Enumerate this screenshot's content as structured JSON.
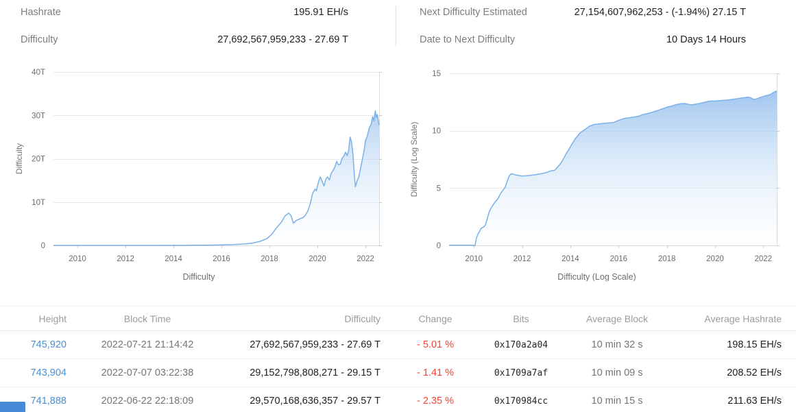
{
  "stats": {
    "left": [
      {
        "label": "Hashrate",
        "value": "195.91 EH/s"
      },
      {
        "label": "Difficulty",
        "value": "27,692,567,959,233 - 27.69 T"
      }
    ],
    "right": [
      {
        "label": "Next Difficulty Estimated",
        "value": "27,154,607,962,253 - (-1.94%) 27.15 T"
      },
      {
        "label": "Date to Next Difficulty",
        "value": "10 Days 14 Hours"
      }
    ]
  },
  "chart_data": [
    {
      "type": "area",
      "title": "Difficulty",
      "legend": "Difficulty",
      "ylabel": "Difficulty",
      "xlabel": "",
      "unit": "T (difficulty, trillions)",
      "grid": true,
      "legend_position": "bottom-center",
      "xlim": [
        2009.0,
        2022.57
      ],
      "ylim": [
        0,
        40
      ],
      "x_ticks": [
        2010,
        2012,
        2014,
        2016,
        2018,
        2020,
        2022
      ],
      "y_ticks": [
        {
          "v": 0,
          "label": "0"
        },
        {
          "v": 10,
          "label": "10T"
        },
        {
          "v": 20,
          "label": "20T"
        },
        {
          "v": 30,
          "label": "30T"
        },
        {
          "v": 40,
          "label": "40T"
        }
      ],
      "points": [
        [
          2009.0,
          0.001
        ],
        [
          2010,
          0.001
        ],
        [
          2011,
          0.001
        ],
        [
          2012,
          0.002
        ],
        [
          2013,
          0.004
        ],
        [
          2014,
          0.01
        ],
        [
          2014.5,
          0.02
        ],
        [
          2015,
          0.04
        ],
        [
          2015.5,
          0.06
        ],
        [
          2016,
          0.12
        ],
        [
          2016.5,
          0.19
        ],
        [
          2017,
          0.34
        ],
        [
          2017.3,
          0.55
        ],
        [
          2017.6,
          0.92
        ],
        [
          2017.9,
          1.6
        ],
        [
          2018.1,
          2.6
        ],
        [
          2018.3,
          4.1
        ],
        [
          2018.5,
          5.4
        ],
        [
          2018.65,
          6.8
        ],
        [
          2018.8,
          7.45
        ],
        [
          2018.9,
          6.9
        ],
        [
          2019.0,
          5.1
        ],
        [
          2019.1,
          5.7
        ],
        [
          2019.25,
          6.1
        ],
        [
          2019.4,
          6.4
        ],
        [
          2019.5,
          7.0
        ],
        [
          2019.6,
          7.9
        ],
        [
          2019.7,
          9.6
        ],
        [
          2019.8,
          12.0
        ],
        [
          2019.9,
          13.0
        ],
        [
          2019.95,
          12.6
        ],
        [
          2020.05,
          14.8
        ],
        [
          2020.12,
          15.8
        ],
        [
          2020.2,
          14.7
        ],
        [
          2020.27,
          13.7
        ],
        [
          2020.35,
          15.3
        ],
        [
          2020.42,
          15.8
        ],
        [
          2020.5,
          15.1
        ],
        [
          2020.57,
          16.6
        ],
        [
          2020.65,
          17.3
        ],
        [
          2020.72,
          18.0
        ],
        [
          2020.8,
          19.4
        ],
        [
          2020.87,
          18.6
        ],
        [
          2020.95,
          18.7
        ],
        [
          2021.02,
          20.0
        ],
        [
          2021.1,
          20.6
        ],
        [
          2021.17,
          21.5
        ],
        [
          2021.24,
          20.7
        ],
        [
          2021.3,
          21.9
        ],
        [
          2021.36,
          25.0
        ],
        [
          2021.42,
          23.9
        ],
        [
          2021.48,
          21.0
        ],
        [
          2021.53,
          16.8
        ],
        [
          2021.58,
          13.5
        ],
        [
          2021.65,
          14.9
        ],
        [
          2021.72,
          15.7
        ],
        [
          2021.8,
          17.9
        ],
        [
          2021.88,
          20.1
        ],
        [
          2021.95,
          22.1
        ],
        [
          2022.0,
          24.2
        ],
        [
          2022.06,
          24.9
        ],
        [
          2022.12,
          26.2
        ],
        [
          2022.18,
          27.4
        ],
        [
          2022.24,
          27.9
        ],
        [
          2022.3,
          29.7
        ],
        [
          2022.35,
          28.7
        ],
        [
          2022.41,
          31.0
        ],
        [
          2022.45,
          29.5
        ],
        [
          2022.49,
          30.2
        ],
        [
          2022.53,
          29.0
        ],
        [
          2022.57,
          27.7
        ]
      ]
    },
    {
      "type": "area",
      "title": "Difficulty (Log Scale)",
      "legend": "Difficulty (Log Scale)",
      "ylabel": "Difficulty (Log Scale)",
      "xlabel": "",
      "unit": "log10(difficulty)",
      "grid": true,
      "legend_position": "bottom-center",
      "xlim": [
        2008.97,
        2022.56
      ],
      "ylim": [
        0,
        15
      ],
      "x_ticks": [
        2010,
        2012,
        2014,
        2016,
        2018,
        2020,
        2022
      ],
      "y_ticks": [
        {
          "v": 0,
          "label": "0"
        },
        {
          "v": 5,
          "label": "5"
        },
        {
          "v": 10,
          "label": "10"
        },
        {
          "v": 15,
          "label": "15"
        }
      ],
      "points": [
        [
          2008.97,
          0.02
        ],
        [
          2010.05,
          0.02
        ],
        [
          2010.1,
          0.6
        ],
        [
          2010.17,
          1.0
        ],
        [
          2010.24,
          1.25
        ],
        [
          2010.3,
          1.5
        ],
        [
          2010.4,
          1.6
        ],
        [
          2010.47,
          1.75
        ],
        [
          2010.55,
          2.3
        ],
        [
          2010.63,
          2.9
        ],
        [
          2010.72,
          3.3
        ],
        [
          2010.85,
          3.7
        ],
        [
          2011.0,
          4.1
        ],
        [
          2011.1,
          4.5
        ],
        [
          2011.2,
          4.8
        ],
        [
          2011.3,
          5.1
        ],
        [
          2011.38,
          5.6
        ],
        [
          2011.46,
          6.05
        ],
        [
          2011.55,
          6.25
        ],
        [
          2011.65,
          6.2
        ],
        [
          2011.8,
          6.12
        ],
        [
          2012.0,
          6.05
        ],
        [
          2012.2,
          6.08
        ],
        [
          2012.5,
          6.15
        ],
        [
          2012.8,
          6.25
        ],
        [
          2013.0,
          6.35
        ],
        [
          2013.2,
          6.5
        ],
        [
          2013.35,
          6.55
        ],
        [
          2013.5,
          6.9
        ],
        [
          2013.65,
          7.3
        ],
        [
          2013.8,
          7.9
        ],
        [
          2014.0,
          8.6
        ],
        [
          2014.2,
          9.3
        ],
        [
          2014.4,
          9.8
        ],
        [
          2014.6,
          10.1
        ],
        [
          2014.8,
          10.4
        ],
        [
          2015.0,
          10.55
        ],
        [
          2015.3,
          10.62
        ],
        [
          2015.6,
          10.68
        ],
        [
          2015.8,
          10.72
        ],
        [
          2016.0,
          10.9
        ],
        [
          2016.2,
          11.05
        ],
        [
          2016.4,
          11.12
        ],
        [
          2016.6,
          11.18
        ],
        [
          2016.8,
          11.25
        ],
        [
          2017.0,
          11.4
        ],
        [
          2017.2,
          11.5
        ],
        [
          2017.4,
          11.62
        ],
        [
          2017.6,
          11.75
        ],
        [
          2017.8,
          11.9
        ],
        [
          2018.0,
          12.05
        ],
        [
          2018.2,
          12.15
        ],
        [
          2018.4,
          12.28
        ],
        [
          2018.6,
          12.36
        ],
        [
          2018.75,
          12.37
        ],
        [
          2018.9,
          12.3
        ],
        [
          2019.0,
          12.25
        ],
        [
          2019.15,
          12.3
        ],
        [
          2019.3,
          12.35
        ],
        [
          2019.5,
          12.45
        ],
        [
          2019.7,
          12.55
        ],
        [
          2019.85,
          12.6
        ],
        [
          2020.0,
          12.58
        ],
        [
          2020.2,
          12.63
        ],
        [
          2020.4,
          12.66
        ],
        [
          2020.6,
          12.7
        ],
        [
          2020.8,
          12.76
        ],
        [
          2021.0,
          12.82
        ],
        [
          2021.15,
          12.86
        ],
        [
          2021.3,
          12.92
        ],
        [
          2021.45,
          12.9
        ],
        [
          2021.55,
          12.78
        ],
        [
          2021.62,
          12.72
        ],
        [
          2021.75,
          12.8
        ],
        [
          2021.88,
          12.9
        ],
        [
          2022.0,
          12.98
        ],
        [
          2022.1,
          13.05
        ],
        [
          2022.2,
          13.1
        ],
        [
          2022.3,
          13.17
        ],
        [
          2022.4,
          13.3
        ],
        [
          2022.5,
          13.42
        ],
        [
          2022.56,
          13.44
        ]
      ]
    }
  ],
  "table": {
    "columns": [
      "Height",
      "Block Time",
      "Difficulty",
      "Change",
      "Bits",
      "Average Block",
      "Average Hashrate"
    ],
    "rows": [
      {
        "height": "745,920",
        "block_time": "2022-07-21 21:14:42",
        "difficulty": "27,692,567,959,233 - 27.69 T",
        "change": "- 5.01 %",
        "bits": "0x170a2a04",
        "average_block": "10 min 32 s",
        "average_hashrate": "198.15 EH/s"
      },
      {
        "height": "743,904",
        "block_time": "2022-07-07 03:22:38",
        "difficulty": "29,152,798,808,271 - 29.15 T",
        "change": "- 1.41 %",
        "bits": "0x1709a7af",
        "average_block": "10 min 09 s",
        "average_hashrate": "208.52 EH/s"
      },
      {
        "height": "741,888",
        "block_time": "2022-06-22 22:18:09",
        "difficulty": "29,570,168,636,357 - 29.57 T",
        "change": "- 2.35 %",
        "bits": "0x170984cc",
        "average_block": "10 min 15 s",
        "average_hashrate": "211.63 EH/s"
      }
    ]
  },
  "colors": {
    "accent_link_blue": "#4a90d2",
    "chart_line_blue": "#79b1e8",
    "chart_fill_top": "rgba(124,176,232,0.88)",
    "negative_red": "#f44336",
    "text_dark": "#212121",
    "text_gray": "#757575",
    "table_header_gray": "#9b9b9b",
    "partial_element_blue": "#4589d8"
  }
}
